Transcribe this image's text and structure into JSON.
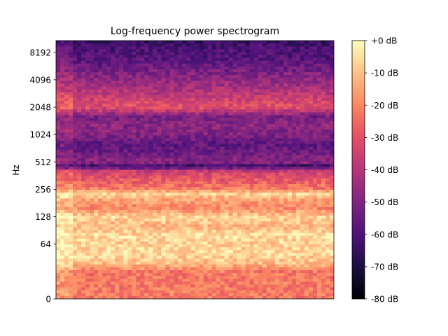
{
  "chart_data": {
    "type": "heatmap",
    "title": "Log-frequency power spectrogram",
    "xlabel": "",
    "ylabel": "Hz",
    "y_scale": "log",
    "y_ticks": [
      "0",
      "64",
      "128",
      "256",
      "512",
      "1024",
      "2048",
      "4096",
      "8192"
    ],
    "colorbar": {
      "colormap": "magma",
      "range_db": [
        -80,
        0
      ],
      "ticks": [
        "+0 dB",
        "-10 dB",
        "-20 dB",
        "-30 dB",
        "-40 dB",
        "-50 dB",
        "-60 dB",
        "-70 dB",
        "-80 dB"
      ]
    },
    "frequency_profile_db": [
      {
        "hz": 32,
        "db": -22
      },
      {
        "hz": 40,
        "db": -10
      },
      {
        "hz": 50,
        "db": -6
      },
      {
        "hz": 64,
        "db": -8
      },
      {
        "hz": 80,
        "db": -5
      },
      {
        "hz": 100,
        "db": -12
      },
      {
        "hz": 128,
        "db": -7
      },
      {
        "hz": 160,
        "db": -20
      },
      {
        "hz": 200,
        "db": -14
      },
      {
        "hz": 230,
        "db": -6
      },
      {
        "hz": 256,
        "db": -22
      },
      {
        "hz": 320,
        "db": -28
      },
      {
        "hz": 400,
        "db": -34
      },
      {
        "hz": 460,
        "db": -64
      },
      {
        "hz": 512,
        "db": -48
      },
      {
        "hz": 640,
        "db": -54
      },
      {
        "hz": 800,
        "db": -57
      },
      {
        "hz": 1024,
        "db": -50
      },
      {
        "hz": 1300,
        "db": -48
      },
      {
        "hz": 1600,
        "db": -52
      },
      {
        "hz": 2048,
        "db": -30
      },
      {
        "hz": 2600,
        "db": -36
      },
      {
        "hz": 3300,
        "db": -42
      },
      {
        "hz": 4096,
        "db": -47
      },
      {
        "hz": 5200,
        "db": -52
      },
      {
        "hz": 6500,
        "db": -57
      },
      {
        "hz": 8192,
        "db": -60
      },
      {
        "hz": 10000,
        "db": -62
      },
      {
        "hz": 11025,
        "db": -66
      }
    ],
    "grid": false
  }
}
